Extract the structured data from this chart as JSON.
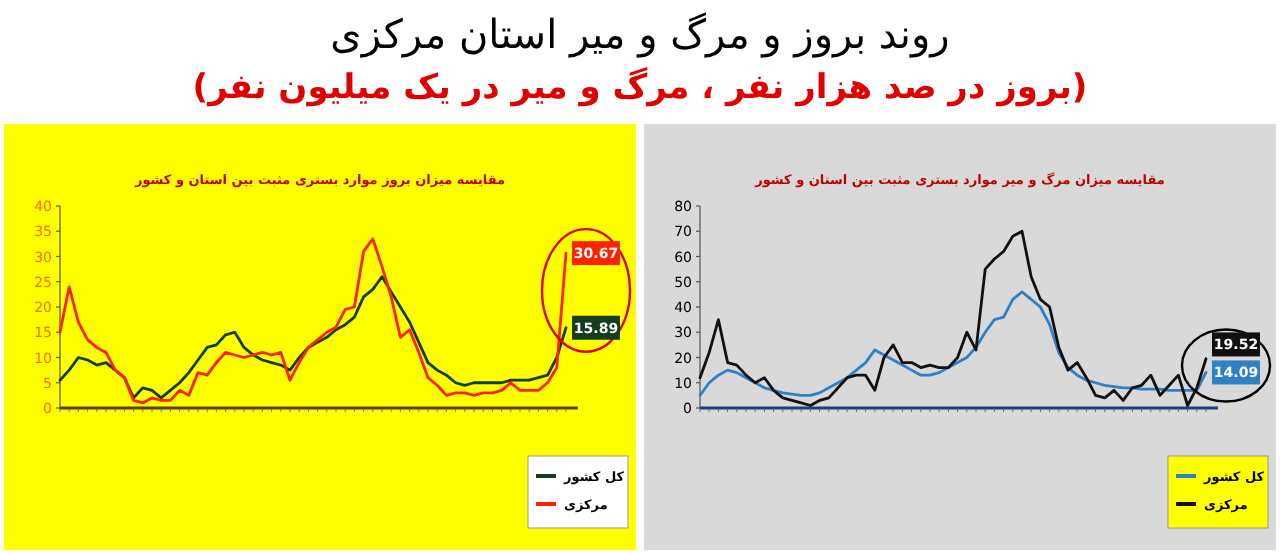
{
  "chart_data": [
    {
      "type": "line",
      "title": "مقایسه میزان بروز موارد بستری مثبت بین استان و کشور",
      "annotations": [
        "روند بروز و مرگ و میر استان مرکزی",
        "(بروز در صد هزار نفر ، مرگ و میر در یک میلیون نفر)"
      ],
      "categories": [
        null,
        null,
        null,
        null,
        null,
        null,
        null,
        null,
        null,
        null,
        null,
        null,
        null,
        null,
        null,
        null,
        null,
        null,
        null,
        null,
        null,
        null,
        null,
        null,
        null,
        null,
        null,
        null,
        null,
        null,
        null,
        null,
        null,
        null,
        null,
        null,
        null,
        null,
        null,
        null,
        null,
        null,
        null,
        null,
        null,
        null,
        null,
        null,
        null,
        null,
        null,
        null,
        null,
        null,
        null,
        null
      ],
      "ylim": [
        0,
        40
      ],
      "yticks": [
        0,
        5,
        10,
        15,
        20,
        25,
        30,
        35,
        40
      ],
      "grid": false,
      "legend": "bottom right",
      "series": [
        {
          "name": "کل کشور",
          "color": "#143d1c",
          "values": [
            5.5,
            7.5,
            10,
            9.5,
            8.5,
            9,
            7.5,
            6,
            2,
            4,
            3.5,
            2,
            3.5,
            5,
            7,
            9.5,
            12,
            12.5,
            14.5,
            15,
            12,
            10.5,
            9.5,
            9,
            8.5,
            7.5,
            10,
            12,
            13,
            14,
            15.5,
            16.5,
            18,
            22,
            23.5,
            26,
            23,
            20,
            17,
            13,
            9,
            7.5,
            6.5,
            5,
            4.5,
            5,
            5,
            5,
            5,
            5.5,
            5.5,
            5.5,
            6,
            6.5,
            10,
            15.89
          ],
          "value_labels": [
            null,
            null,
            null,
            null,
            null,
            null,
            null,
            null,
            null,
            null,
            null,
            null,
            null,
            null,
            null,
            null,
            null,
            null,
            null,
            null,
            null,
            null,
            null,
            null,
            null,
            null,
            null,
            null,
            null,
            null,
            null,
            null,
            null,
            null,
            null,
            null,
            null,
            null,
            null,
            null,
            null,
            null,
            null,
            null,
            null,
            null,
            null,
            null,
            null,
            null,
            null,
            null,
            null,
            null,
            null,
            "15.89"
          ]
        },
        {
          "name": "مرکزی",
          "color": "#ff2200",
          "values": [
            15,
            24,
            17,
            13.5,
            12,
            11,
            7.5,
            6,
            1.5,
            1,
            2,
            1.5,
            1.5,
            3.5,
            2.5,
            7,
            6.5,
            9,
            11,
            10.5,
            10,
            10.5,
            11,
            10.5,
            11,
            5.5,
            9,
            12,
            13.5,
            15,
            16,
            19.5,
            20,
            31,
            33.5,
            28,
            22,
            14,
            15.5,
            11,
            6,
            4.5,
            2.5,
            3,
            3,
            2.5,
            3,
            3,
            3.5,
            5,
            3.5,
            3.5,
            3.5,
            5,
            8,
            30.67
          ],
          "value_labels": [
            null,
            null,
            null,
            null,
            null,
            null,
            null,
            null,
            null,
            null,
            null,
            null,
            null,
            null,
            null,
            null,
            null,
            null,
            null,
            null,
            null,
            null,
            null,
            null,
            null,
            null,
            null,
            null,
            null,
            null,
            null,
            null,
            null,
            null,
            null,
            null,
            null,
            null,
            null,
            null,
            null,
            null,
            null,
            null,
            null,
            null,
            null,
            null,
            null,
            null,
            null,
            null,
            null,
            null,
            null,
            "30.67"
          ]
        }
      ]
    },
    {
      "type": "line",
      "title": "مقایسه میزان مرگ و میر موارد بستری مثبت بین استان و کشور",
      "categories": [
        null,
        null,
        null,
        null,
        null,
        null,
        null,
        null,
        null,
        null,
        null,
        null,
        null,
        null,
        null,
        null,
        null,
        null,
        null,
        null,
        null,
        null,
        null,
        null,
        null,
        null,
        null,
        null,
        null,
        null,
        null,
        null,
        null,
        null,
        null,
        null,
        null,
        null,
        null,
        null,
        null,
        null,
        null,
        null,
        null,
        null,
        null,
        null,
        null,
        null,
        null,
        null,
        null,
        null,
        null,
        null
      ],
      "ylim": [
        0,
        80
      ],
      "yticks": [
        0,
        10,
        20,
        30,
        40,
        50,
        60,
        70,
        80
      ],
      "grid": false,
      "legend": "bottom right",
      "series": [
        {
          "name": "کل کشور",
          "color": "#2f80c4",
          "values": [
            5,
            10,
            13,
            15,
            14,
            12,
            10,
            8,
            7,
            6,
            5.5,
            5,
            5,
            6,
            8,
            10,
            12,
            15,
            18,
            23,
            21,
            19,
            17,
            15,
            13,
            13,
            14,
            16,
            18,
            20,
            24,
            30,
            35,
            36,
            43,
            46,
            43,
            40,
            33,
            22,
            16,
            13,
            11,
            10,
            9,
            8.5,
            8,
            8,
            7.5,
            7.5,
            7.5,
            7,
            7,
            7,
            7,
            14.09
          ],
          "value_labels": [
            null,
            null,
            null,
            null,
            null,
            null,
            null,
            null,
            null,
            null,
            null,
            null,
            null,
            null,
            null,
            null,
            null,
            null,
            null,
            null,
            null,
            null,
            null,
            null,
            null,
            null,
            null,
            null,
            null,
            null,
            null,
            null,
            null,
            null,
            null,
            null,
            null,
            null,
            null,
            null,
            null,
            null,
            null,
            null,
            null,
            null,
            null,
            null,
            null,
            null,
            null,
            null,
            null,
            null,
            null,
            "14.09"
          ]
        },
        {
          "name": "مرکزی",
          "color": "#111111",
          "values": [
            12,
            22,
            35,
            18,
            17,
            13,
            10,
            12,
            7,
            4,
            3,
            2,
            1,
            3,
            4,
            8,
            12,
            13,
            13,
            7,
            20,
            25,
            18,
            18,
            16,
            17,
            16,
            16,
            20,
            30,
            23,
            55,
            59,
            62,
            68,
            70,
            52,
            43,
            40,
            24,
            15,
            18,
            12,
            5,
            4,
            7,
            3,
            8,
            9,
            13,
            5,
            9,
            13,
            1,
            8,
            19.52
          ],
          "value_labels": [
            null,
            null,
            null,
            null,
            null,
            null,
            null,
            null,
            null,
            null,
            null,
            null,
            null,
            null,
            null,
            null,
            null,
            null,
            null,
            null,
            null,
            null,
            null,
            null,
            null,
            null,
            null,
            null,
            null,
            null,
            null,
            null,
            null,
            null,
            null,
            null,
            null,
            null,
            null,
            null,
            null,
            null,
            null,
            null,
            null,
            null,
            null,
            null,
            null,
            null,
            null,
            null,
            null,
            null,
            null,
            "19.52"
          ]
        }
      ]
    }
  ]
}
